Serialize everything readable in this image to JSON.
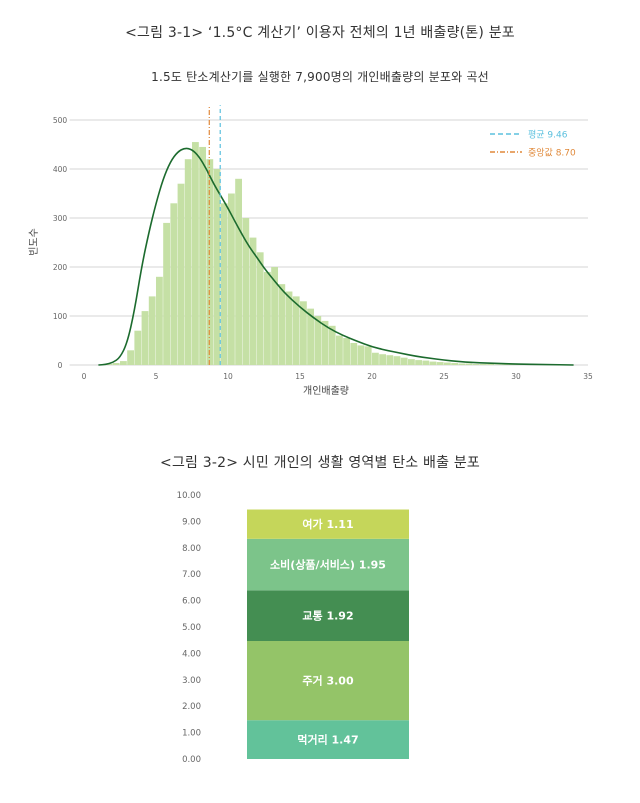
{
  "figure1": {
    "title": "<그림 3-1> ‘1.5°C 계산기’ 이용자 전체의 1년 배출량(톤) 분포"
  },
  "figure2": {
    "title": "<그림 3-2> 시민 개인의 생활 영역별 탄소 배출 분포"
  },
  "chart_data": [
    {
      "type": "bar",
      "subtype": "histogram-with-density",
      "title": "1.5도 탄소계산기를 실행한 7,900명의 개인배출량의 분포와 곡선",
      "xlabel": "개인배출량",
      "ylabel": "빈도수",
      "xlim": [
        -2,
        35
      ],
      "ylim": [
        0,
        500
      ],
      "xticks": [
        "0",
        "5",
        "10",
        "15",
        "20",
        "25",
        "30",
        "35"
      ],
      "yticks": [
        "0",
        "100",
        "200",
        "300",
        "400",
        "500",
        "600"
      ],
      "grid": true,
      "bar_color": "#c5e0a5",
      "curve_color": "#1c6b2e",
      "bin_width": 0.5,
      "bins_x": [
        1.5,
        2.0,
        2.5,
        3.0,
        3.5,
        4.0,
        4.5,
        5.0,
        5.5,
        6.0,
        6.5,
        7.0,
        7.5,
        8.0,
        8.5,
        9.0,
        9.5,
        10.0,
        10.5,
        11.0,
        11.5,
        12.0,
        12.5,
        13.0,
        13.5,
        14.0,
        14.5,
        15.0,
        15.5,
        16.0,
        16.5,
        17.0,
        17.5,
        18.0,
        18.5,
        19.0,
        19.5,
        20.0,
        20.5,
        21.0,
        21.5,
        22.0,
        22.5,
        23.0,
        23.5,
        24.0,
        24.5,
        25.0,
        25.5,
        26.0,
        26.5,
        27.0,
        27.5,
        28.0,
        28.5,
        29.0,
        29.5,
        30.0
      ],
      "bins_y": [
        2,
        4,
        8,
        30,
        70,
        110,
        140,
        180,
        290,
        330,
        370,
        420,
        455,
        445,
        420,
        400,
        330,
        350,
        380,
        300,
        260,
        230,
        190,
        200,
        165,
        150,
        140,
        130,
        115,
        100,
        90,
        80,
        60,
        55,
        45,
        40,
        38,
        25,
        22,
        20,
        18,
        15,
        12,
        10,
        9,
        7,
        6,
        5,
        4,
        3,
        3,
        2,
        2,
        2,
        1,
        1,
        1,
        1
      ],
      "curve_x": [
        1,
        1.5,
        2,
        2.5,
        3,
        3.5,
        4,
        4.5,
        5,
        5.5,
        6,
        6.5,
        7,
        7.5,
        8,
        8.5,
        9,
        9.5,
        10,
        10.5,
        11,
        11.5,
        12,
        12.5,
        13,
        13.5,
        14,
        15,
        16,
        17,
        18,
        19,
        20,
        21,
        22,
        23,
        24,
        25,
        26,
        27,
        28,
        29,
        30,
        32,
        34
      ],
      "curve_y": [
        0,
        1,
        5,
        15,
        45,
        110,
        200,
        270,
        330,
        380,
        415,
        435,
        443,
        440,
        425,
        400,
        370,
        345,
        320,
        292,
        265,
        240,
        220,
        198,
        180,
        162,
        145,
        118,
        95,
        75,
        60,
        48,
        37,
        30,
        24,
        18,
        14,
        10,
        7,
        5,
        4,
        3,
        2,
        1,
        0
      ],
      "series": [
        {
          "name": "평균 9.46",
          "value": 9.46,
          "color": "#5bc0de",
          "style": "dashed"
        },
        {
          "name": "중앙값 8.70",
          "value": 8.7,
          "color": "#e0893a",
          "style": "dashdot"
        }
      ],
      "legend": "top-right"
    },
    {
      "type": "bar",
      "subtype": "stacked",
      "title": "",
      "ylim": [
        0,
        10
      ],
      "yticks": [
        "0.00",
        "1.00",
        "2.00",
        "3.00",
        "4.00",
        "5.00",
        "6.00",
        "7.00",
        "8.00",
        "9.00",
        "10.00"
      ],
      "series": [
        {
          "name": "먹거리",
          "label": "먹거리 1.47",
          "value": 1.47,
          "color": "#62c29a"
        },
        {
          "name": "주거",
          "label": "주거 3.00",
          "value": 3.0,
          "color": "#94c468"
        },
        {
          "name": "교통",
          "label": "교통 1.92",
          "value": 1.92,
          "color": "#448e52"
        },
        {
          "name": "소비(상품/서비스)",
          "label": "소비(상품/서비스) 1.95",
          "value": 1.95,
          "color": "#7cc48a"
        },
        {
          "name": "여가",
          "label": "여가 1.11",
          "value": 1.11,
          "color": "#c5d65a"
        }
      ]
    }
  ]
}
